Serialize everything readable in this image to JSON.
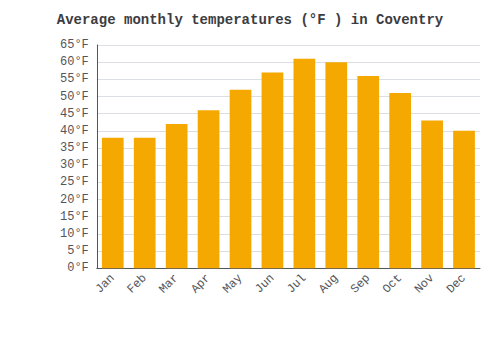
{
  "chart_data": {
    "type": "bar",
    "title": "Average monthly temperatures (°F ) in Coventry",
    "categories": [
      "Jan",
      "Feb",
      "Mar",
      "Apr",
      "May",
      "Jun",
      "Jul",
      "Aug",
      "Sep",
      "Oct",
      "Nov",
      "Dec"
    ],
    "values": [
      38,
      38,
      42,
      46,
      52,
      57,
      61,
      60,
      56,
      51,
      43,
      40
    ],
    "color": "#F5A800",
    "ylim": [
      0,
      65
    ],
    "yticks": [
      {
        "value": 0,
        "label": "0°F"
      },
      {
        "value": 5,
        "label": "5°F"
      },
      {
        "value": 10,
        "label": "10°F"
      },
      {
        "value": 15,
        "label": "15°F"
      },
      {
        "value": 20,
        "label": "20°F"
      },
      {
        "value": 25,
        "label": "25°F"
      },
      {
        "value": 30,
        "label": "30°F"
      },
      {
        "value": 35,
        "label": "35°F"
      },
      {
        "value": 40,
        "label": "40°F"
      },
      {
        "value": 45,
        "label": "45°F"
      },
      {
        "value": 50,
        "label": "50°F"
      },
      {
        "value": 55,
        "label": "55°F"
      },
      {
        "value": 60,
        "label": "60°F"
      },
      {
        "value": 65,
        "label": "65°F"
      }
    ],
    "grid": true
  }
}
